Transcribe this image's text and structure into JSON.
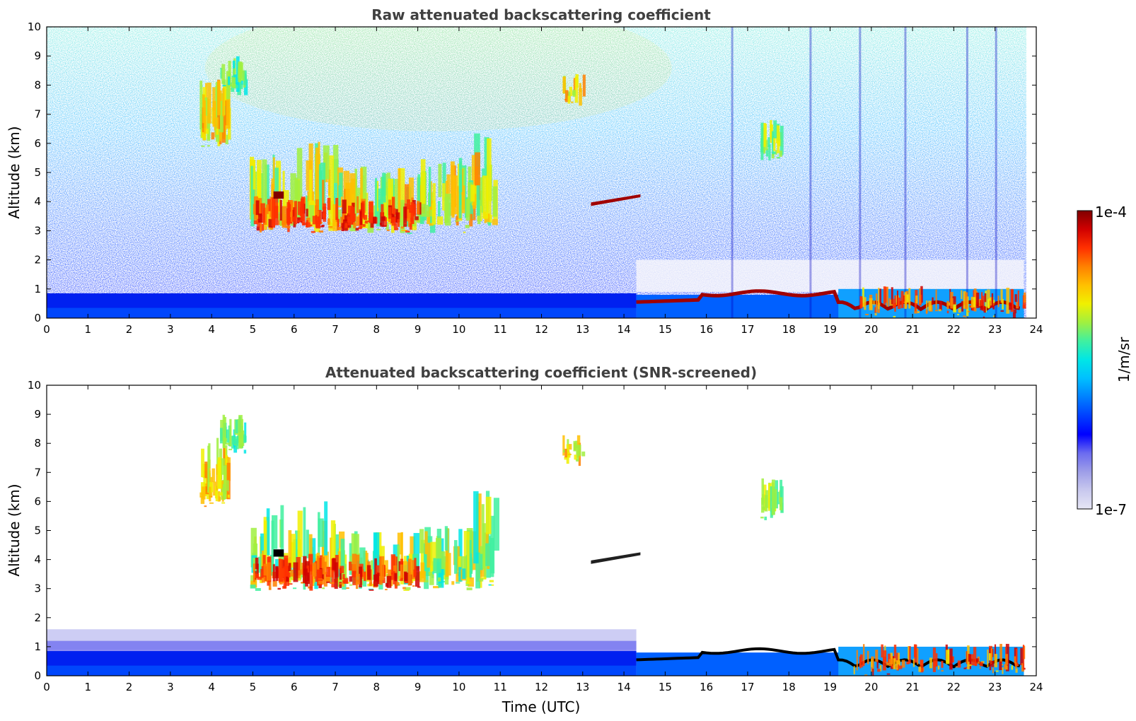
{
  "chart_data": [
    {
      "type": "heatmap",
      "title": "Raw attenuated backscattering coefficient",
      "xlabel": "",
      "ylabel": "Altitude (km)",
      "xlim": [
        0,
        24
      ],
      "ylim": [
        0,
        10
      ],
      "xticks": [
        "0",
        "1",
        "2",
        "3",
        "4",
        "5",
        "6",
        "7",
        "8",
        "9",
        "10",
        "11",
        "12",
        "13",
        "14",
        "15",
        "16",
        "17",
        "18",
        "19",
        "20",
        "21",
        "22",
        "23",
        "24"
      ],
      "yticks": [
        "0",
        "1",
        "2",
        "3",
        "4",
        "5",
        "6",
        "7",
        "8",
        "9",
        "10"
      ],
      "data_end_hour": 23.7,
      "features": [
        {
          "name": "boundary-layer",
          "x": [
            0,
            23.7
          ],
          "y": [
            0,
            0.8
          ],
          "level": 0.25
        },
        {
          "name": "mid-level cloud band",
          "x": [
            4.9,
            10.9
          ],
          "y": [
            2.9,
            6.2
          ],
          "level": 0.72
        },
        {
          "name": "cirrus",
          "x": [
            3.7,
            4.9
          ],
          "y": [
            5.8,
            9.1
          ],
          "level": 0.6
        },
        {
          "name": "thin layer",
          "x": [
            13.2,
            14.5
          ],
          "y": [
            3.8,
            4.2
          ],
          "level": 0.95
        },
        {
          "name": "isolated cloud",
          "x": [
            17.3,
            17.8
          ],
          "y": [
            5.3,
            6.8
          ],
          "level": 0.55
        },
        {
          "name": "low cloud top",
          "x": [
            14.3,
            23.7
          ],
          "y": [
            0.2,
            1.0
          ],
          "level": 0.9
        }
      ]
    },
    {
      "type": "heatmap",
      "title": "Attenuated backscattering coefficient (SNR-screened)",
      "xlabel": "Time (UTC)",
      "ylabel": "Altitude (km)",
      "xlim": [
        0,
        24
      ],
      "ylim": [
        0,
        10
      ],
      "xticks": [
        "0",
        "1",
        "2",
        "3",
        "4",
        "5",
        "6",
        "7",
        "8",
        "9",
        "10",
        "11",
        "12",
        "13",
        "14",
        "15",
        "16",
        "17",
        "18",
        "19",
        "20",
        "21",
        "22",
        "23",
        "24"
      ],
      "yticks": [
        "0",
        "1",
        "2",
        "3",
        "4",
        "5",
        "6",
        "7",
        "8",
        "9",
        "10"
      ],
      "data_end_hour": 23.7
    }
  ],
  "colorbar": {
    "label": "1/m/sr",
    "max_label": "1e-4",
    "min_label": "1e-7",
    "scale": "log",
    "range": [
      1e-07,
      0.0001
    ],
    "colormap": [
      "#e6e6f5",
      "#c8c8ee",
      "#9e9ee8",
      "#6a6af0",
      "#0000ff",
      "#0040ff",
      "#0080ff",
      "#00c0ff",
      "#00e6e6",
      "#40f0a0",
      "#a0f040",
      "#f0f000",
      "#ffc000",
      "#ff8000",
      "#ff3000",
      "#d00000",
      "#800000"
    ]
  }
}
